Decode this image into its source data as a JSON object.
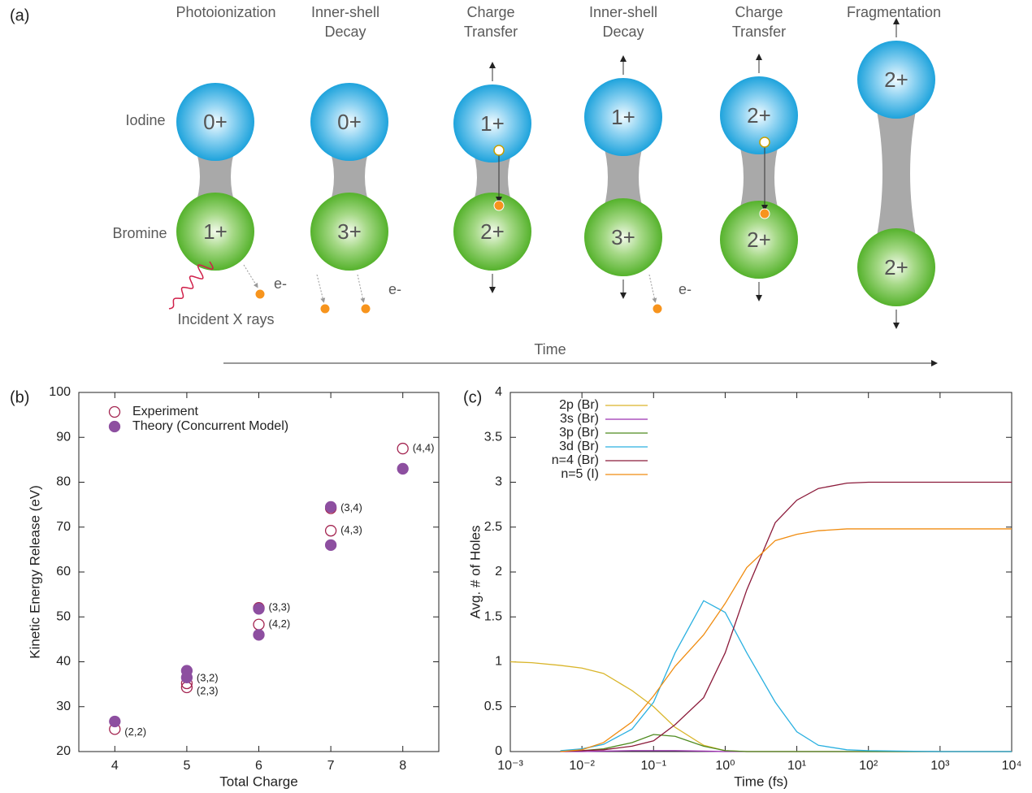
{
  "diagram": {
    "panel_label": "(a)",
    "iodine_label": "Iodine",
    "bromine_label": "Bromine",
    "xray_label": "Incident X rays",
    "time_label": "Time",
    "stages": [
      {
        "title": [
          "Photoionization"
        ],
        "iodine": "0+",
        "bromine": "1+",
        "electron_label": "e-"
      },
      {
        "title": [
          "Inner-shell",
          "Decay"
        ],
        "iodine": "0+",
        "bromine": "3+",
        "electron_label": "e-"
      },
      {
        "title": [
          "Charge",
          "Transfer"
        ],
        "iodine": "1+",
        "bromine": "2+"
      },
      {
        "title": [
          "Inner-shell",
          "Decay"
        ],
        "iodine": "1+",
        "bromine": "3+",
        "electron_label": "e-"
      },
      {
        "title": [
          "Charge",
          "Transfer"
        ],
        "iodine": "2+",
        "bromine": "2+"
      },
      {
        "title": [
          "Fragmentation"
        ],
        "iodine": "2+",
        "bromine": "2+"
      }
    ]
  },
  "chart_data": [
    {
      "type": "scatter",
      "panel_label": "(b)",
      "x_label": "Total Charge",
      "y_label": "Kinetic Energy Release (eV)",
      "xlim": [
        3.5,
        8.5
      ],
      "ylim": [
        20,
        100
      ],
      "xticks": [
        4,
        5,
        6,
        7,
        8
      ],
      "yticks": [
        20,
        30,
        40,
        50,
        60,
        70,
        80,
        90,
        100
      ],
      "legend": "upper left",
      "series": [
        {
          "name": "Experiment",
          "color": "#a3234f",
          "marker": "open",
          "x": [
            4,
            5,
            5,
            6,
            6,
            7,
            7,
            8
          ],
          "values": [
            25,
            35.2,
            34.3,
            52,
            48.3,
            74.2,
            69.2,
            87.5
          ],
          "point_labels": [
            "(2,2)",
            "(3,2)",
            "(2,3)",
            "(3,3)",
            "(4,2)",
            "(3,4)",
            "(4,3)",
            "(4,4)"
          ]
        },
        {
          "name": "Theory (Concurrent Model)",
          "color": "#8d4fa0",
          "marker": "filled",
          "x": [
            4,
            5,
            5,
            6,
            6,
            7,
            7,
            8
          ],
          "values": [
            26.7,
            38,
            36.5,
            51.8,
            46,
            74.5,
            66,
            83
          ]
        }
      ]
    },
    {
      "type": "line",
      "panel_label": "(c)",
      "x_label": "Time (fs)",
      "y_label": "Avg. # of Holes",
      "x_scale": "log",
      "xlim": [
        0.001,
        10000
      ],
      "ylim": [
        0,
        4
      ],
      "xticks": [
        {
          "value": 0.001,
          "label": "10⁻³"
        },
        {
          "value": 0.01,
          "label": "10⁻²"
        },
        {
          "value": 0.1,
          "label": "10⁻¹"
        },
        {
          "value": 1,
          "label": "10⁰"
        },
        {
          "value": 10,
          "label": "10¹"
        },
        {
          "value": 100,
          "label": "10²"
        },
        {
          "value": 1000,
          "label": "10³"
        },
        {
          "value": 10000,
          "label": "10⁴"
        }
      ],
      "yticks": [
        0,
        0.5,
        1,
        1.5,
        2,
        2.5,
        3,
        3.5,
        4
      ],
      "legend": "upper left",
      "x": [
        0.001,
        0.002,
        0.005,
        0.01,
        0.02,
        0.05,
        0.1,
        0.2,
        0.5,
        1,
        2,
        5,
        10,
        20,
        50,
        100,
        1000,
        10000
      ],
      "series": [
        {
          "name": "2p (Br)",
          "color": "#d9b52a",
          "values": [
            1,
            0.99,
            0.96,
            0.93,
            0.87,
            0.68,
            0.5,
            0.27,
            0.07,
            0.01,
            0,
            0,
            0,
            0,
            0,
            0,
            0,
            0
          ]
        },
        {
          "name": "3s (Br)",
          "color": "#9b30b0",
          "values": [
            null,
            null,
            0,
            0,
            0.005,
            0.01,
            0.01,
            0.01,
            0.005,
            0,
            0,
            0,
            0,
            0,
            0,
            0,
            0,
            0
          ]
        },
        {
          "name": "3p (Br)",
          "color": "#4e8a1e",
          "values": [
            null,
            null,
            0.005,
            0.01,
            0.03,
            0.1,
            0.19,
            0.17,
            0.06,
            0.01,
            0,
            0,
            0,
            0,
            0,
            0,
            0,
            0
          ]
        },
        {
          "name": "3d (Br)",
          "color": "#2ab0e0",
          "values": [
            null,
            null,
            0.01,
            0.03,
            0.08,
            0.25,
            0.55,
            1.1,
            1.68,
            1.55,
            1.1,
            0.55,
            0.22,
            0.07,
            0.02,
            0.01,
            0,
            0
          ]
        },
        {
          "name": "n=4 (Br)",
          "color": "#8b1a3a",
          "values": [
            null,
            null,
            0,
            0.01,
            0.02,
            0.06,
            0.12,
            0.3,
            0.6,
            1.1,
            1.8,
            2.55,
            2.8,
            2.93,
            2.99,
            3,
            3,
            3
          ]
        },
        {
          "name": "n=5 (I)",
          "color": "#f08c10",
          "values": [
            null,
            null,
            0,
            0.02,
            0.1,
            0.33,
            0.62,
            0.95,
            1.3,
            1.65,
            2.05,
            2.35,
            2.42,
            2.46,
            2.48,
            2.48,
            2.48,
            2.48
          ]
        }
      ]
    }
  ]
}
